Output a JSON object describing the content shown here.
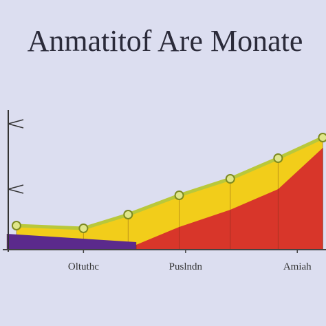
{
  "chart_data": {
    "type": "area",
    "title": "Anmatitof Are Monate",
    "xlim": [
      0,
      10
    ],
    "ylim": [
      0,
      10
    ],
    "xticks": [
      {
        "value": 2.4,
        "label": "Oltuthc"
      },
      {
        "value": 5.6,
        "label": "Puslndn"
      },
      {
        "value": 9.1,
        "label": "Amiah"
      }
    ],
    "series": [
      {
        "color": "#f2cd1a",
        "line_color": "#b9c83a",
        "x": [
          0.3,
          2.4,
          3.8,
          5.4,
          7.0,
          8.5,
          9.9
        ],
        "values": [
          1.7,
          1.5,
          2.5,
          3.9,
          5.1,
          6.6,
          8.1
        ]
      },
      {
        "color": "#d8362a",
        "x": [
          4.05,
          5.4,
          7.0,
          8.5,
          9.9
        ],
        "values": [
          0.3,
          1.6,
          2.85,
          4.35,
          7.35
        ]
      },
      {
        "color": "#5b2a8c",
        "x": [
          0,
          4.05
        ],
        "values": [
          1.1,
          0.5
        ]
      }
    ]
  }
}
